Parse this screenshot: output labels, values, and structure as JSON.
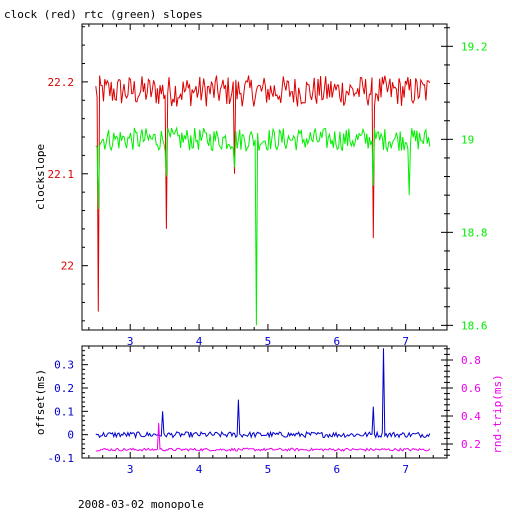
{
  "title": "clock (red) rtc (green) slopes",
  "footer": "2008-03-02 monopole",
  "colors": {
    "red": "#dd0000",
    "green": "#00ee00",
    "blue": "#0000cc",
    "magenta": "#ee00ee",
    "axis": "#000000"
  },
  "chart_data": [
    {
      "type": "line",
      "title": "clock (red) rtc (green) slopes",
      "ylabel": "clockslope",
      "xlim": [
        2.3,
        7.6
      ],
      "ylim": [
        21.93,
        22.263
      ],
      "y2lim": [
        18.59,
        19.248
      ],
      "x_ticks": [
        "3",
        "4",
        "5",
        "6",
        "7"
      ],
      "y_ticks": [
        "22",
        "22.1",
        "22.2"
      ],
      "y2_ticks": [
        "18.6",
        "18.8",
        "19",
        "19.2"
      ],
      "series": [
        {
          "color": "red",
          "axis": "left",
          "x_range": [
            2.5,
            7.35
          ],
          "baseline": 22.19,
          "noise": 0.017,
          "spikes": [
            [
              2.53,
              21.95
            ],
            [
              3.52,
              22.04
            ],
            [
              4.52,
              22.1
            ],
            [
              6.52,
              22.03
            ]
          ]
        },
        {
          "color": "green",
          "axis": "right",
          "x_range": [
            2.5,
            7.35
          ],
          "baseline": 19.0,
          "noise": 0.025,
          "spikes": [
            [
              2.53,
              18.85
            ],
            [
              3.52,
              18.92
            ],
            [
              4.52,
              18.94
            ],
            [
              4.84,
              18.6
            ],
            [
              6.52,
              18.9
            ],
            [
              7.05,
              18.88
            ]
          ]
        }
      ]
    },
    {
      "type": "line",
      "ylabel": "offset(ms)",
      "y2label": "rnd-trip(ms)",
      "xlim": [
        2.3,
        7.6
      ],
      "ylim": [
        -0.1,
        0.38
      ],
      "y2lim": [
        0.1,
        0.9
      ],
      "x_ticks": [
        "3",
        "4",
        "5",
        "6",
        "7"
      ],
      "y_ticks": [
        "-0.1",
        "0",
        "0.1",
        "0.2",
        "0.3"
      ],
      "y2_ticks": [
        "0.2",
        "0.4",
        "0.6",
        "0.8"
      ],
      "series": [
        {
          "color": "blue",
          "axis": "left",
          "x_range": [
            2.5,
            7.35
          ],
          "baseline": 0.0,
          "noise": 0.012,
          "spikes": [
            [
              3.47,
              0.1
            ],
            [
              4.57,
              0.15
            ],
            [
              6.52,
              0.12
            ],
            [
              6.68,
              0.37
            ]
          ]
        },
        {
          "color": "magenta",
          "axis": "right",
          "x_range": [
            2.5,
            7.35
          ],
          "baseline": 0.16,
          "noise": 0.01,
          "spikes": [
            [
              3.42,
              0.35
            ]
          ]
        }
      ]
    }
  ]
}
